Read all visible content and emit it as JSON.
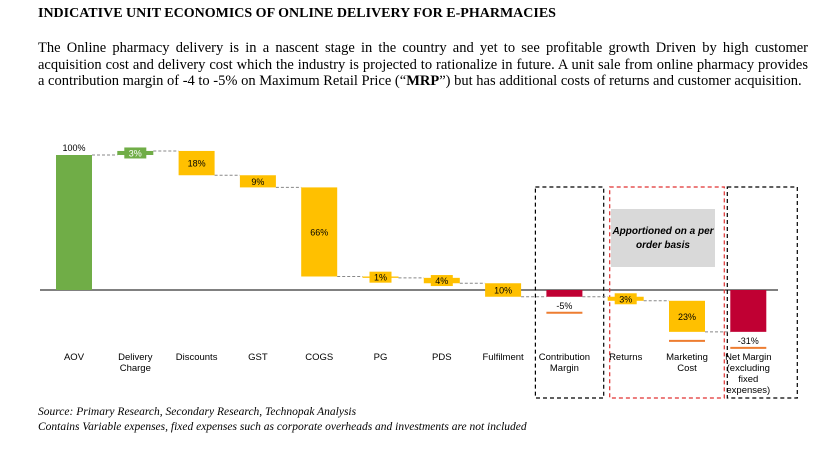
{
  "title": "INDICATIVE UNIT ECONOMICS OF ONLINE DELIVERY FOR E-PHARMACIES",
  "paragraph": {
    "before": "The Online pharmacy delivery is in a nascent stage in the country and yet to see profitable growth Driven by high customer acquisition cost and delivery cost which the industry is projected to rationalize in future. A unit sale from online pharmacy provides a contribution margin of -4 to -5% on Maximum Retail Price (“",
    "bold": "MRP",
    "after": "”) but has additional costs of returns and customer acquisition."
  },
  "note_box": "Apportioned on a per order basis",
  "sources": [
    "Source: Primary Research, Secondary Research, Technopak Analysis",
    "Contains Variable expenses, fixed expenses such as corporate overheads and investments are not included"
  ],
  "colors": {
    "green": "#70ad47",
    "yellow": "#ffc000",
    "red": "#c00033",
    "orange": "#ed7d31",
    "note_bg": "#d9d9d9",
    "red_dash": "#e03030"
  },
  "chart_data": {
    "type": "waterfall",
    "ylim": [
      -45,
      100
    ],
    "items": [
      {
        "category": "AOV",
        "label": "100%",
        "start": 0,
        "end": 100,
        "kind": "total"
      },
      {
        "category": "Delivery\nCharge",
        "label": "3%",
        "start": 100,
        "end": 103,
        "kind": "increase"
      },
      {
        "category": "Discounts",
        "label": "18%",
        "start": 103,
        "end": 85,
        "kind": "decrease"
      },
      {
        "category": "GST",
        "label": "9%",
        "start": 85,
        "end": 76,
        "kind": "decrease"
      },
      {
        "category": "COGS",
        "label": "66%",
        "start": 76,
        "end": 10,
        "kind": "decrease"
      },
      {
        "category": "PG",
        "label": "1%",
        "start": 10,
        "end": 9,
        "kind": "decrease"
      },
      {
        "category": "PDS",
        "label": "4%",
        "start": 9,
        "end": 5,
        "kind": "decrease"
      },
      {
        "category": "Fulfilment",
        "label": "10%",
        "start": 5,
        "end": -5,
        "kind": "decrease"
      },
      {
        "category": "Contribution\nMargin",
        "label": "-5%",
        "start": 0,
        "end": -5,
        "kind": "subtotal"
      },
      {
        "category": "Returns",
        "label": "3%",
        "start": -5,
        "end": -8,
        "kind": "decrease"
      },
      {
        "category": "Marketing\nCost",
        "label": "23%",
        "start": -8,
        "end": -31,
        "kind": "decrease"
      },
      {
        "category": "Net Margin\n(excluding\nfixed\nexpenses)",
        "label": "-31%",
        "start": 0,
        "end": -31,
        "kind": "total"
      }
    ]
  }
}
